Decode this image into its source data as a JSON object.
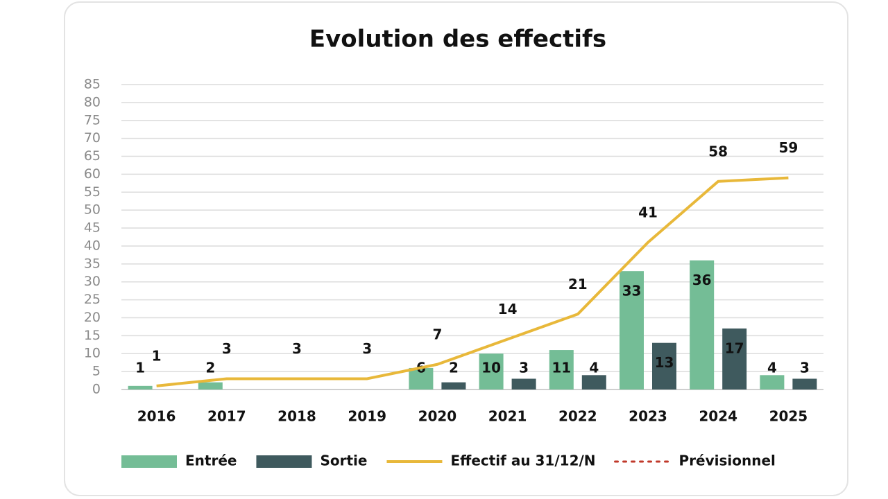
{
  "chart_data": {
    "type": "bar",
    "title": "Evolution des effectifs",
    "categories": [
      "2016",
      "2017",
      "2018",
      "2019",
      "2020",
      "2021",
      "2022",
      "2023",
      "2024",
      "2025"
    ],
    "series": [
      {
        "name": "Entrée",
        "type": "bar",
        "color": "#74bd96",
        "values": [
          1,
          2,
          null,
          null,
          6,
          10,
          11,
          33,
          36,
          4
        ]
      },
      {
        "name": "Sortie",
        "type": "bar",
        "color": "#3f5a5e",
        "values": [
          null,
          null,
          null,
          null,
          2,
          3,
          4,
          13,
          17,
          3
        ]
      },
      {
        "name": "Effectif au 31/12/N",
        "type": "line",
        "color": "#e8b83a",
        "values": [
          1,
          3,
          3,
          3,
          7,
          14,
          21,
          41,
          58,
          59
        ]
      },
      {
        "name": "Prévisionnel",
        "type": "line",
        "style": "dotted",
        "color": "#c0392b",
        "values": [
          null,
          null,
          null,
          null,
          null,
          null,
          null,
          null,
          null,
          null
        ]
      }
    ],
    "ylim": [
      0,
      85
    ],
    "yticks": [
      0,
      5,
      10,
      15,
      20,
      25,
      30,
      35,
      40,
      45,
      50,
      55,
      60,
      65,
      70,
      75,
      80,
      85
    ],
    "grid": true,
    "legend": "bottom"
  }
}
